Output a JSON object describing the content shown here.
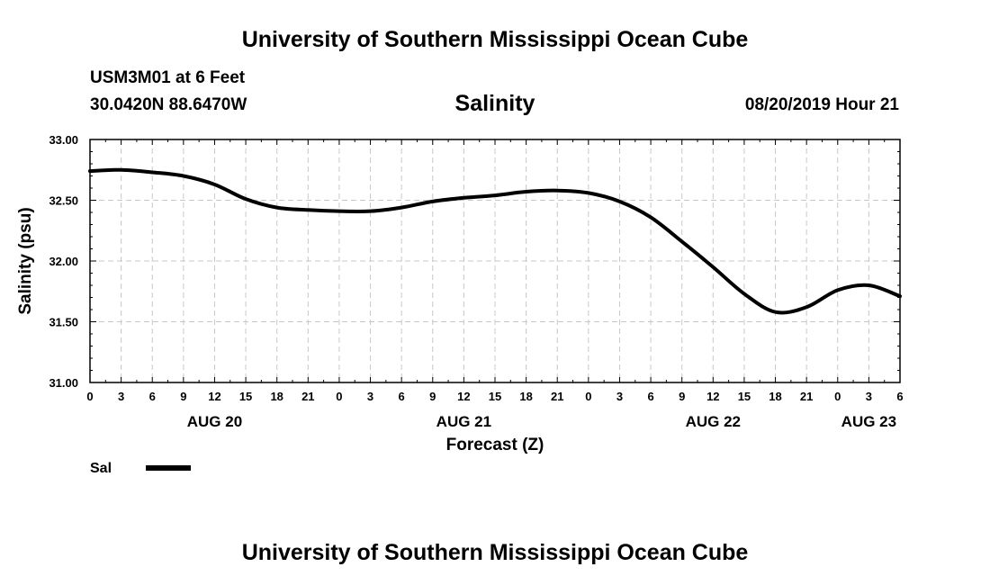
{
  "header": {
    "title": "University of Southern Mississippi Ocean Cube",
    "station": "USM3M01 at 6 Feet",
    "coordinates": "30.0420N 88.6470W",
    "variable": "Salinity",
    "run_time": "08/20/2019 Hour 21"
  },
  "footer": {
    "title": "University of Southern Mississippi Ocean Cube"
  },
  "chart_data": {
    "type": "line",
    "title": "Salinity",
    "xlabel": "Forecast (Z)",
    "ylabel": "Salinity (psu)",
    "ylim": [
      31.0,
      33.0
    ],
    "yticks": [
      "31.00",
      "31.50",
      "32.00",
      "32.50",
      "33.00"
    ],
    "xticks": [
      "0",
      "3",
      "6",
      "9",
      "12",
      "15",
      "18",
      "21",
      "0",
      "3",
      "6",
      "9",
      "12",
      "15",
      "18",
      "21",
      "0",
      "3",
      "6",
      "9",
      "12",
      "15",
      "18",
      "21",
      "0",
      "3",
      "6"
    ],
    "date_labels": [
      {
        "label": "AUG 20",
        "hour_index": 12
      },
      {
        "label": "AUG 21",
        "hour_index": 36
      },
      {
        "label": "AUG 22",
        "hour_index": 60
      },
      {
        "label": "AUG 23",
        "hour_index": 75
      }
    ],
    "grid": true,
    "legend": {
      "position": "bottom-left",
      "entries": [
        {
          "name": "Sal",
          "color": "#000000"
        }
      ]
    },
    "series": [
      {
        "name": "Sal",
        "color": "#000000",
        "hours": [
          0,
          3,
          6,
          9,
          12,
          15,
          18,
          21,
          24,
          27,
          30,
          33,
          36,
          39,
          42,
          45,
          48,
          51,
          54,
          57,
          60,
          63,
          66,
          69,
          72,
          75,
          78
        ],
        "values": [
          32.74,
          32.75,
          32.73,
          32.7,
          32.63,
          32.51,
          32.44,
          32.42,
          32.41,
          32.41,
          32.44,
          32.49,
          32.52,
          32.54,
          32.57,
          32.58,
          32.56,
          32.49,
          32.36,
          32.16,
          31.95,
          31.73,
          31.58,
          31.62,
          31.76,
          31.8,
          31.71
        ]
      }
    ]
  }
}
